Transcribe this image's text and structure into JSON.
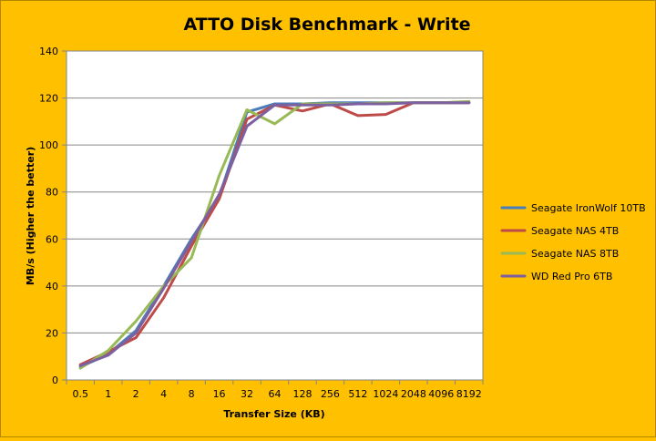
{
  "chart_data": {
    "type": "line",
    "title": "ATTO Disk Benchmark - Write",
    "xlabel": "Transfer Size (KB)",
    "ylabel": "MB/s (Higher the better)",
    "categories": [
      "0.5",
      "1",
      "2",
      "4",
      "8",
      "16",
      "32",
      "64",
      "128",
      "256",
      "512",
      "1024",
      "2048",
      "4096",
      "8192"
    ],
    "ylim": [
      0,
      140
    ],
    "yticks": [
      "0",
      "20",
      "40",
      "60",
      "80",
      "100",
      "120",
      "140"
    ],
    "grid": true,
    "legend_position": "right",
    "series": [
      {
        "name": "Seagate IronWolf 10TB",
        "color": "#4a7ebb",
        "values": [
          5.5,
          11,
          21,
          40,
          60,
          78,
          114,
          117.5,
          117.5,
          118,
          118,
          118,
          118,
          118,
          118
        ]
      },
      {
        "name": "Seagate NAS 4TB",
        "color": "#be4b48",
        "values": [
          6.5,
          12,
          18,
          35,
          57,
          77,
          111,
          117,
          114.5,
          117.5,
          112.5,
          113,
          118,
          118,
          118
        ]
      },
      {
        "name": "Seagate NAS 8TB",
        "color": "#98b954",
        "values": [
          5,
          12.5,
          25,
          40,
          52,
          87,
          115,
          109,
          117.5,
          117.5,
          117.5,
          118,
          118,
          118,
          118.5
        ]
      },
      {
        "name": "WD Red Pro 6TB",
        "color": "#7d60a0",
        "values": [
          6,
          10.5,
          20,
          39,
          59,
          79,
          108,
          117,
          117,
          117,
          117.5,
          117.5,
          118,
          118,
          118
        ]
      }
    ]
  }
}
